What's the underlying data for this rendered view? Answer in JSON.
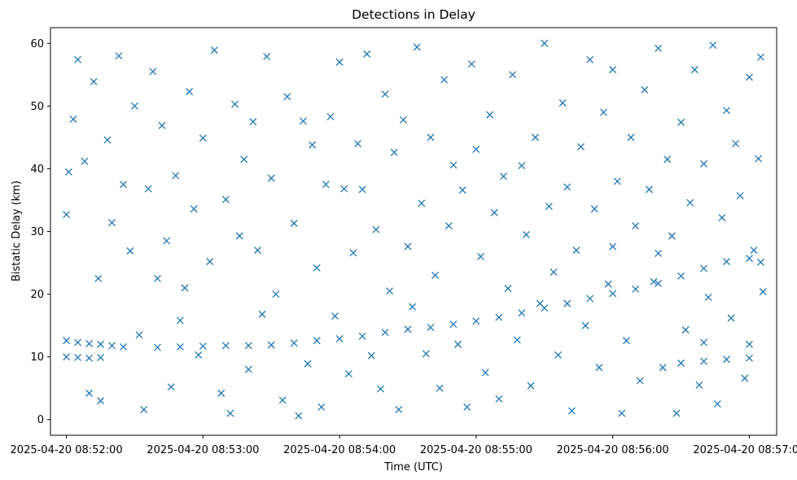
{
  "chart_data": {
    "type": "scatter",
    "title": "Detections in Delay",
    "xlabel": "Time (UTC)",
    "ylabel": "Bistatic Delay (km)",
    "marker": "x",
    "color": "#1f77b4",
    "x_ticks": [
      "2025-04-20 08:52:00",
      "2025-04-20 08:53:00",
      "2025-04-20 08:54:00",
      "2025-04-20 08:55:00",
      "2025-04-20 08:56:00",
      "2025-04-20 08:57:00"
    ],
    "y_ticks": [
      "0",
      "10",
      "20",
      "30",
      "40",
      "50",
      "60"
    ],
    "xlim": [
      "2025-04-20 08:51:53",
      "2025-04-20 08:57:12"
    ],
    "ylim": [
      -2.5,
      62.5
    ],
    "grid": false,
    "series": [
      {
        "name": "",
        "points": [
          [
            "2025-04-20 08:52:00",
            12.6
          ],
          [
            "2025-04-20 08:52:05",
            12.3
          ],
          [
            "2025-04-20 08:52:10",
            12.1
          ],
          [
            "2025-04-20 08:52:15",
            12.0
          ],
          [
            "2025-04-20 08:52:20",
            11.8
          ],
          [
            "2025-04-20 08:52:25",
            11.6
          ],
          [
            "2025-04-20 08:52:00",
            10.0
          ],
          [
            "2025-04-20 08:52:05",
            9.9
          ],
          [
            "2025-04-20 08:52:10",
            9.8
          ],
          [
            "2025-04-20 08:52:15",
            9.9
          ],
          [
            "2025-04-20 08:52:40",
            11.5
          ],
          [
            "2025-04-20 08:52:50",
            11.6
          ],
          [
            "2025-04-20 08:53:00",
            11.7
          ],
          [
            "2025-04-20 08:53:10",
            11.8
          ],
          [
            "2025-04-20 08:53:20",
            11.8
          ],
          [
            "2025-04-20 08:53:30",
            11.9
          ],
          [
            "2025-04-20 08:53:40",
            12.2
          ],
          [
            "2025-04-20 08:53:50",
            12.6
          ],
          [
            "2025-04-20 08:54:00",
            12.9
          ],
          [
            "2025-04-20 08:54:10",
            13.3
          ],
          [
            "2025-04-20 08:54:20",
            13.9
          ],
          [
            "2025-04-20 08:54:30",
            14.4
          ],
          [
            "2025-04-20 08:54:40",
            14.7
          ],
          [
            "2025-04-20 08:54:50",
            15.2
          ],
          [
            "2025-04-20 08:55:00",
            15.7
          ],
          [
            "2025-04-20 08:55:10",
            16.3
          ],
          [
            "2025-04-20 08:55:20",
            17.0
          ],
          [
            "2025-04-20 08:55:30",
            17.8
          ],
          [
            "2025-04-20 08:55:40",
            18.5
          ],
          [
            "2025-04-20 08:55:50",
            19.3
          ],
          [
            "2025-04-20 08:56:00",
            20.1
          ],
          [
            "2025-04-20 08:56:10",
            20.8
          ],
          [
            "2025-04-20 08:56:20",
            21.7
          ],
          [
            "2025-04-20 08:56:30",
            22.9
          ],
          [
            "2025-04-20 08:56:40",
            24.1
          ],
          [
            "2025-04-20 08:56:50",
            25.2
          ],
          [
            "2025-04-20 08:57:00",
            25.7
          ],
          [
            "2025-04-20 08:57:05",
            25.1
          ],
          [
            "2025-04-20 08:56:30",
            9.0
          ],
          [
            "2025-04-20 08:56:40",
            9.3
          ],
          [
            "2025-04-20 08:56:50",
            9.6
          ],
          [
            "2025-04-20 08:57:00",
            9.8
          ],
          [
            "2025-04-20 08:56:40",
            12.3
          ],
          [
            "2025-04-20 08:57:00",
            12.0
          ],
          [
            "2025-04-20 08:56:00",
            27.6
          ],
          [
            "2025-04-20 08:56:20",
            26.5
          ],
          [
            "2025-04-20 08:52:00",
            32.7
          ],
          [
            "2025-04-20 08:52:01",
            39.5
          ],
          [
            "2025-04-20 08:52:03",
            47.9
          ],
          [
            "2025-04-20 08:52:05",
            57.4
          ],
          [
            "2025-04-20 08:52:08",
            41.2
          ],
          [
            "2025-04-20 08:52:10",
            4.2
          ],
          [
            "2025-04-20 08:52:12",
            53.9
          ],
          [
            "2025-04-20 08:52:14",
            22.5
          ],
          [
            "2025-04-20 08:52:15",
            3.0
          ],
          [
            "2025-04-20 08:52:18",
            44.6
          ],
          [
            "2025-04-20 08:52:20",
            31.4
          ],
          [
            "2025-04-20 08:52:23",
            58.0
          ],
          [
            "2025-04-20 08:52:25",
            37.5
          ],
          [
            "2025-04-20 08:52:28",
            26.9
          ],
          [
            "2025-04-20 08:52:30",
            50.0
          ],
          [
            "2025-04-20 08:52:32",
            13.5
          ],
          [
            "2025-04-20 08:52:34",
            1.6
          ],
          [
            "2025-04-20 08:52:36",
            36.8
          ],
          [
            "2025-04-20 08:52:38",
            55.5
          ],
          [
            "2025-04-20 08:52:40",
            22.5
          ],
          [
            "2025-04-20 08:52:42",
            46.9
          ],
          [
            "2025-04-20 08:52:44",
            28.5
          ],
          [
            "2025-04-20 08:52:46",
            5.2
          ],
          [
            "2025-04-20 08:52:48",
            38.9
          ],
          [
            "2025-04-20 08:52:50",
            15.8
          ],
          [
            "2025-04-20 08:52:52",
            21.0
          ],
          [
            "2025-04-20 08:52:54",
            52.3
          ],
          [
            "2025-04-20 08:52:56",
            33.6
          ],
          [
            "2025-04-20 08:52:58",
            10.3
          ],
          [
            "2025-04-20 08:53:00",
            44.9
          ],
          [
            "2025-04-20 08:53:03",
            25.2
          ],
          [
            "2025-04-20 08:53:05",
            58.9
          ],
          [
            "2025-04-20 08:53:08",
            4.2
          ],
          [
            "2025-04-20 08:53:10",
            35.1
          ],
          [
            "2025-04-20 08:53:12",
            1.0
          ],
          [
            "2025-04-20 08:53:14",
            50.3
          ],
          [
            "2025-04-20 08:53:16",
            29.3
          ],
          [
            "2025-04-20 08:53:18",
            41.5
          ],
          [
            "2025-04-20 08:53:20",
            8.0
          ],
          [
            "2025-04-20 08:53:22",
            47.5
          ],
          [
            "2025-04-20 08:53:24",
            27.0
          ],
          [
            "2025-04-20 08:53:26",
            16.8
          ],
          [
            "2025-04-20 08:53:28",
            57.9
          ],
          [
            "2025-04-20 08:53:30",
            38.5
          ],
          [
            "2025-04-20 08:53:32",
            20.0
          ],
          [
            "2025-04-20 08:53:35",
            3.1
          ],
          [
            "2025-04-20 08:53:37",
            51.5
          ],
          [
            "2025-04-20 08:53:40",
            31.3
          ],
          [
            "2025-04-20 08:53:42",
            0.6
          ],
          [
            "2025-04-20 08:53:44",
            47.6
          ],
          [
            "2025-04-20 08:53:46",
            8.9
          ],
          [
            "2025-04-20 08:53:48",
            43.8
          ],
          [
            "2025-04-20 08:53:50",
            24.2
          ],
          [
            "2025-04-20 08:53:52",
            2.0
          ],
          [
            "2025-04-20 08:53:54",
            37.5
          ],
          [
            "2025-04-20 08:53:56",
            48.3
          ],
          [
            "2025-04-20 08:53:58",
            16.5
          ],
          [
            "2025-04-20 08:54:00",
            57.0
          ],
          [
            "2025-04-20 08:54:02",
            36.8
          ],
          [
            "2025-04-20 08:54:04",
            7.3
          ],
          [
            "2025-04-20 08:54:06",
            26.6
          ],
          [
            "2025-04-20 08:54:08",
            44.0
          ],
          [
            "2025-04-20 08:54:10",
            36.7
          ],
          [
            "2025-04-20 08:54:12",
            58.3
          ],
          [
            "2025-04-20 08:54:14",
            10.2
          ],
          [
            "2025-04-20 08:54:16",
            30.3
          ],
          [
            "2025-04-20 08:54:18",
            4.9
          ],
          [
            "2025-04-20 08:54:20",
            51.9
          ],
          [
            "2025-04-20 08:54:22",
            20.5
          ],
          [
            "2025-04-20 08:54:24",
            42.6
          ],
          [
            "2025-04-20 08:54:26",
            1.6
          ],
          [
            "2025-04-20 08:54:28",
            47.8
          ],
          [
            "2025-04-20 08:54:30",
            27.6
          ],
          [
            "2025-04-20 08:54:32",
            18.0
          ],
          [
            "2025-04-20 08:54:34",
            59.4
          ],
          [
            "2025-04-20 08:54:36",
            34.5
          ],
          [
            "2025-04-20 08:54:38",
            10.5
          ],
          [
            "2025-04-20 08:54:40",
            45.0
          ],
          [
            "2025-04-20 08:54:42",
            23.0
          ],
          [
            "2025-04-20 08:54:44",
            5.0
          ],
          [
            "2025-04-20 08:54:46",
            54.2
          ],
          [
            "2025-04-20 08:54:48",
            30.9
          ],
          [
            "2025-04-20 08:54:50",
            40.6
          ],
          [
            "2025-04-20 08:54:52",
            12.0
          ],
          [
            "2025-04-20 08:54:54",
            36.6
          ],
          [
            "2025-04-20 08:54:56",
            2.0
          ],
          [
            "2025-04-20 08:54:58",
            56.7
          ],
          [
            "2025-04-20 08:55:00",
            43.1
          ],
          [
            "2025-04-20 08:55:02",
            26.0
          ],
          [
            "2025-04-20 08:55:04",
            7.5
          ],
          [
            "2025-04-20 08:55:06",
            48.6
          ],
          [
            "2025-04-20 08:55:08",
            33.0
          ],
          [
            "2025-04-20 08:55:10",
            3.3
          ],
          [
            "2025-04-20 08:55:12",
            38.8
          ],
          [
            "2025-04-20 08:55:14",
            20.9
          ],
          [
            "2025-04-20 08:55:16",
            55.0
          ],
          [
            "2025-04-20 08:55:18",
            12.7
          ],
          [
            "2025-04-20 08:55:20",
            40.5
          ],
          [
            "2025-04-20 08:55:22",
            29.5
          ],
          [
            "2025-04-20 08:55:24",
            5.4
          ],
          [
            "2025-04-20 08:55:26",
            45.0
          ],
          [
            "2025-04-20 08:55:28",
            18.5
          ],
          [
            "2025-04-20 08:55:30",
            60.0
          ],
          [
            "2025-04-20 08:55:32",
            34.0
          ],
          [
            "2025-04-20 08:55:34",
            23.5
          ],
          [
            "2025-04-20 08:55:36",
            10.3
          ],
          [
            "2025-04-20 08:55:38",
            50.5
          ],
          [
            "2025-04-20 08:55:40",
            37.1
          ],
          [
            "2025-04-20 08:55:42",
            1.4
          ],
          [
            "2025-04-20 08:55:44",
            27.0
          ],
          [
            "2025-04-20 08:55:46",
            43.5
          ],
          [
            "2025-04-20 08:55:48",
            15.0
          ],
          [
            "2025-04-20 08:55:50",
            57.4
          ],
          [
            "2025-04-20 08:55:52",
            33.6
          ],
          [
            "2025-04-20 08:55:54",
            8.3
          ],
          [
            "2025-04-20 08:55:56",
            49.0
          ],
          [
            "2025-04-20 08:55:58",
            21.6
          ],
          [
            "2025-04-20 08:56:00",
            55.8
          ],
          [
            "2025-04-20 08:56:02",
            38.0
          ],
          [
            "2025-04-20 08:56:04",
            1.0
          ],
          [
            "2025-04-20 08:56:06",
            12.6
          ],
          [
            "2025-04-20 08:56:08",
            45.0
          ],
          [
            "2025-04-20 08:56:10",
            30.9
          ],
          [
            "2025-04-20 08:56:12",
            6.2
          ],
          [
            "2025-04-20 08:56:14",
            52.6
          ],
          [
            "2025-04-20 08:56:16",
            36.7
          ],
          [
            "2025-04-20 08:56:18",
            22.0
          ],
          [
            "2025-04-20 08:56:20",
            59.2
          ],
          [
            "2025-04-20 08:56:22",
            8.3
          ],
          [
            "2025-04-20 08:56:24",
            41.5
          ],
          [
            "2025-04-20 08:56:26",
            29.3
          ],
          [
            "2025-04-20 08:56:28",
            1.0
          ],
          [
            "2025-04-20 08:56:30",
            47.4
          ],
          [
            "2025-04-20 08:56:32",
            14.3
          ],
          [
            "2025-04-20 08:56:34",
            34.6
          ],
          [
            "2025-04-20 08:56:36",
            55.8
          ],
          [
            "2025-04-20 08:56:38",
            5.5
          ],
          [
            "2025-04-20 08:56:40",
            40.8
          ],
          [
            "2025-04-20 08:56:42",
            19.5
          ],
          [
            "2025-04-20 08:56:44",
            59.7
          ],
          [
            "2025-04-20 08:56:46",
            2.5
          ],
          [
            "2025-04-20 08:56:48",
            32.2
          ],
          [
            "2025-04-20 08:56:50",
            49.3
          ],
          [
            "2025-04-20 08:56:52",
            16.2
          ],
          [
            "2025-04-20 08:56:54",
            44.0
          ],
          [
            "2025-04-20 08:56:56",
            35.7
          ],
          [
            "2025-04-20 08:56:58",
            6.6
          ],
          [
            "2025-04-20 08:57:00",
            54.6
          ],
          [
            "2025-04-20 08:57:02",
            27.0
          ],
          [
            "2025-04-20 08:57:04",
            41.6
          ],
          [
            "2025-04-20 08:57:05",
            57.8
          ],
          [
            "2025-04-20 08:57:06",
            20.4
          ]
        ]
      }
    ]
  }
}
